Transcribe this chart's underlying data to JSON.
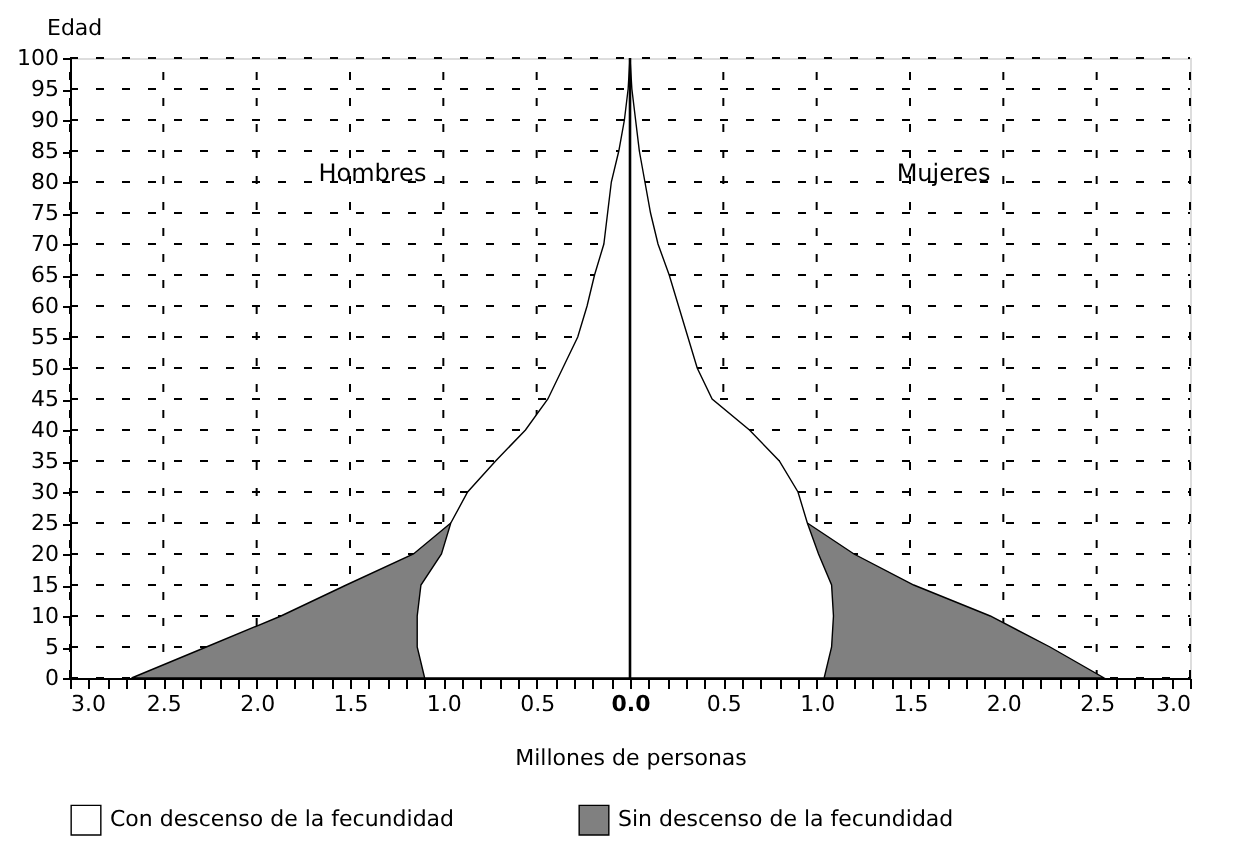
{
  "chart_data": {
    "type": "area",
    "orientation": "horizontal",
    "xlabel": "Millones de personas",
    "ylabel": "Edad",
    "xlim": [
      -3,
      3
    ],
    "ylim": [
      0,
      100
    ],
    "xticks": [
      {
        "value": -3,
        "label": "3.0"
      },
      {
        "value": -2.9,
        "label": null
      },
      {
        "value": -2.8,
        "label": null
      },
      {
        "value": -2.7,
        "label": null
      },
      {
        "value": -2.6,
        "label": null
      },
      {
        "value": -2.5,
        "label": "2.5"
      },
      {
        "value": -2.4,
        "label": null
      },
      {
        "value": -2.3,
        "label": null
      },
      {
        "value": -2.2,
        "label": null
      },
      {
        "value": -2.1,
        "label": null
      },
      {
        "value": -2,
        "label": "2.0"
      },
      {
        "value": -1.9,
        "label": null
      },
      {
        "value": -1.8,
        "label": null
      },
      {
        "value": -1.7,
        "label": null
      },
      {
        "value": -1.6,
        "label": null
      },
      {
        "value": -1.5,
        "label": "1.5"
      },
      {
        "value": -1.4,
        "label": null
      },
      {
        "value": -1.3,
        "label": null
      },
      {
        "value": -1.2,
        "label": null
      },
      {
        "value": -1.1,
        "label": null
      },
      {
        "value": -1,
        "label": "1.0"
      },
      {
        "value": -0.9,
        "label": null
      },
      {
        "value": -0.8,
        "label": null
      },
      {
        "value": -0.7,
        "label": null
      },
      {
        "value": -0.6,
        "label": null
      },
      {
        "value": -0.5,
        "label": "0.5"
      },
      {
        "value": -0.4,
        "label": null
      },
      {
        "value": -0.3,
        "label": null
      },
      {
        "value": -0.2,
        "label": null
      },
      {
        "value": -0.1,
        "label": null
      },
      {
        "value": 0,
        "label": "0.0"
      },
      {
        "value": 0.1,
        "label": null
      },
      {
        "value": 0.2,
        "label": null
      },
      {
        "value": 0.3,
        "label": null
      },
      {
        "value": 0.4,
        "label": null
      },
      {
        "value": 0.5,
        "label": "0.5"
      },
      {
        "value": 0.6,
        "label": null
      },
      {
        "value": 0.7,
        "label": null
      },
      {
        "value": 0.8,
        "label": null
      },
      {
        "value": 0.9,
        "label": null
      },
      {
        "value": 1,
        "label": "1.0"
      },
      {
        "value": 1.1,
        "label": null
      },
      {
        "value": 1.2,
        "label": null
      },
      {
        "value": 1.3,
        "label": null
      },
      {
        "value": 1.4,
        "label": null
      },
      {
        "value": 1.5,
        "label": "1.5"
      },
      {
        "value": 1.6,
        "label": null
      },
      {
        "value": 1.7,
        "label": null
      },
      {
        "value": 1.8,
        "label": null
      },
      {
        "value": 1.9,
        "label": null
      },
      {
        "value": 2,
        "label": "2.0"
      },
      {
        "value": 2.1,
        "label": null
      },
      {
        "value": 2.2,
        "label": null
      },
      {
        "value": 2.3,
        "label": null
      },
      {
        "value": 2.4,
        "label": null
      },
      {
        "value": 2.5,
        "label": "2.5"
      },
      {
        "value": 2.6,
        "label": null
      },
      {
        "value": 2.7,
        "label": null
      },
      {
        "value": 2.8,
        "label": null
      },
      {
        "value": 2.9,
        "label": null
      },
      {
        "value": 3,
        "label": "3.0"
      }
    ],
    "yticks": [
      0,
      5,
      10,
      15,
      20,
      25,
      30,
      35,
      40,
      45,
      50,
      55,
      60,
      65,
      70,
      75,
      80,
      85,
      90,
      95,
      100
    ],
    "grid": true,
    "legend": "bottom",
    "annotations": [
      "Hombres",
      "Mujeres"
    ],
    "ref_lines": [
      {
        "axis": "x",
        "value": 0,
        "color": "#000000"
      }
    ],
    "series": [
      {
        "name": "Con descenso de la fecundidad",
        "color": "#ffffff",
        "x": [
          0,
          5,
          10,
          15,
          20,
          25,
          30,
          35,
          40,
          45,
          50,
          55,
          60,
          65,
          70,
          75,
          80,
          85,
          90,
          95,
          100
        ],
        "values": [
          -1.1,
          -1.14,
          -1.14,
          -1.12,
          -1.01,
          -0.96,
          -0.87,
          -0.72,
          -0.56,
          -0.44,
          -0.36,
          -0.28,
          -0.23,
          -0.19,
          -0.14,
          -0.12,
          -0.1,
          -0.06,
          -0.03,
          -0.01,
          0
        ]
      },
      {
        "color": "#ffffff",
        "x": [
          0,
          5,
          10,
          15,
          20,
          25,
          30,
          35,
          40,
          45,
          50,
          55,
          60,
          65,
          70,
          75,
          80,
          85,
          90,
          95,
          100
        ],
        "values": [
          1.04,
          1.08,
          1.09,
          1.08,
          1.01,
          0.95,
          0.9,
          0.8,
          0.64,
          0.44,
          0.36,
          0.31,
          0.26,
          0.21,
          0.15,
          0.11,
          0.08,
          0.05,
          0.03,
          0.01,
          0
        ]
      },
      {
        "name": "Sin descenso de la fecundidad",
        "color": "#808080",
        "x": [
          0,
          5,
          10,
          15,
          20,
          25
        ],
        "values": [
          -2.67,
          -2.27,
          -1.87,
          -1.52,
          -1.16,
          -0.96
        ]
      },
      {
        "color": "#808080",
        "x": [
          0,
          5,
          10,
          15,
          20,
          25
        ],
        "values": [
          2.54,
          2.25,
          1.93,
          1.52,
          1.2,
          0.95
        ]
      }
    ]
  }
}
